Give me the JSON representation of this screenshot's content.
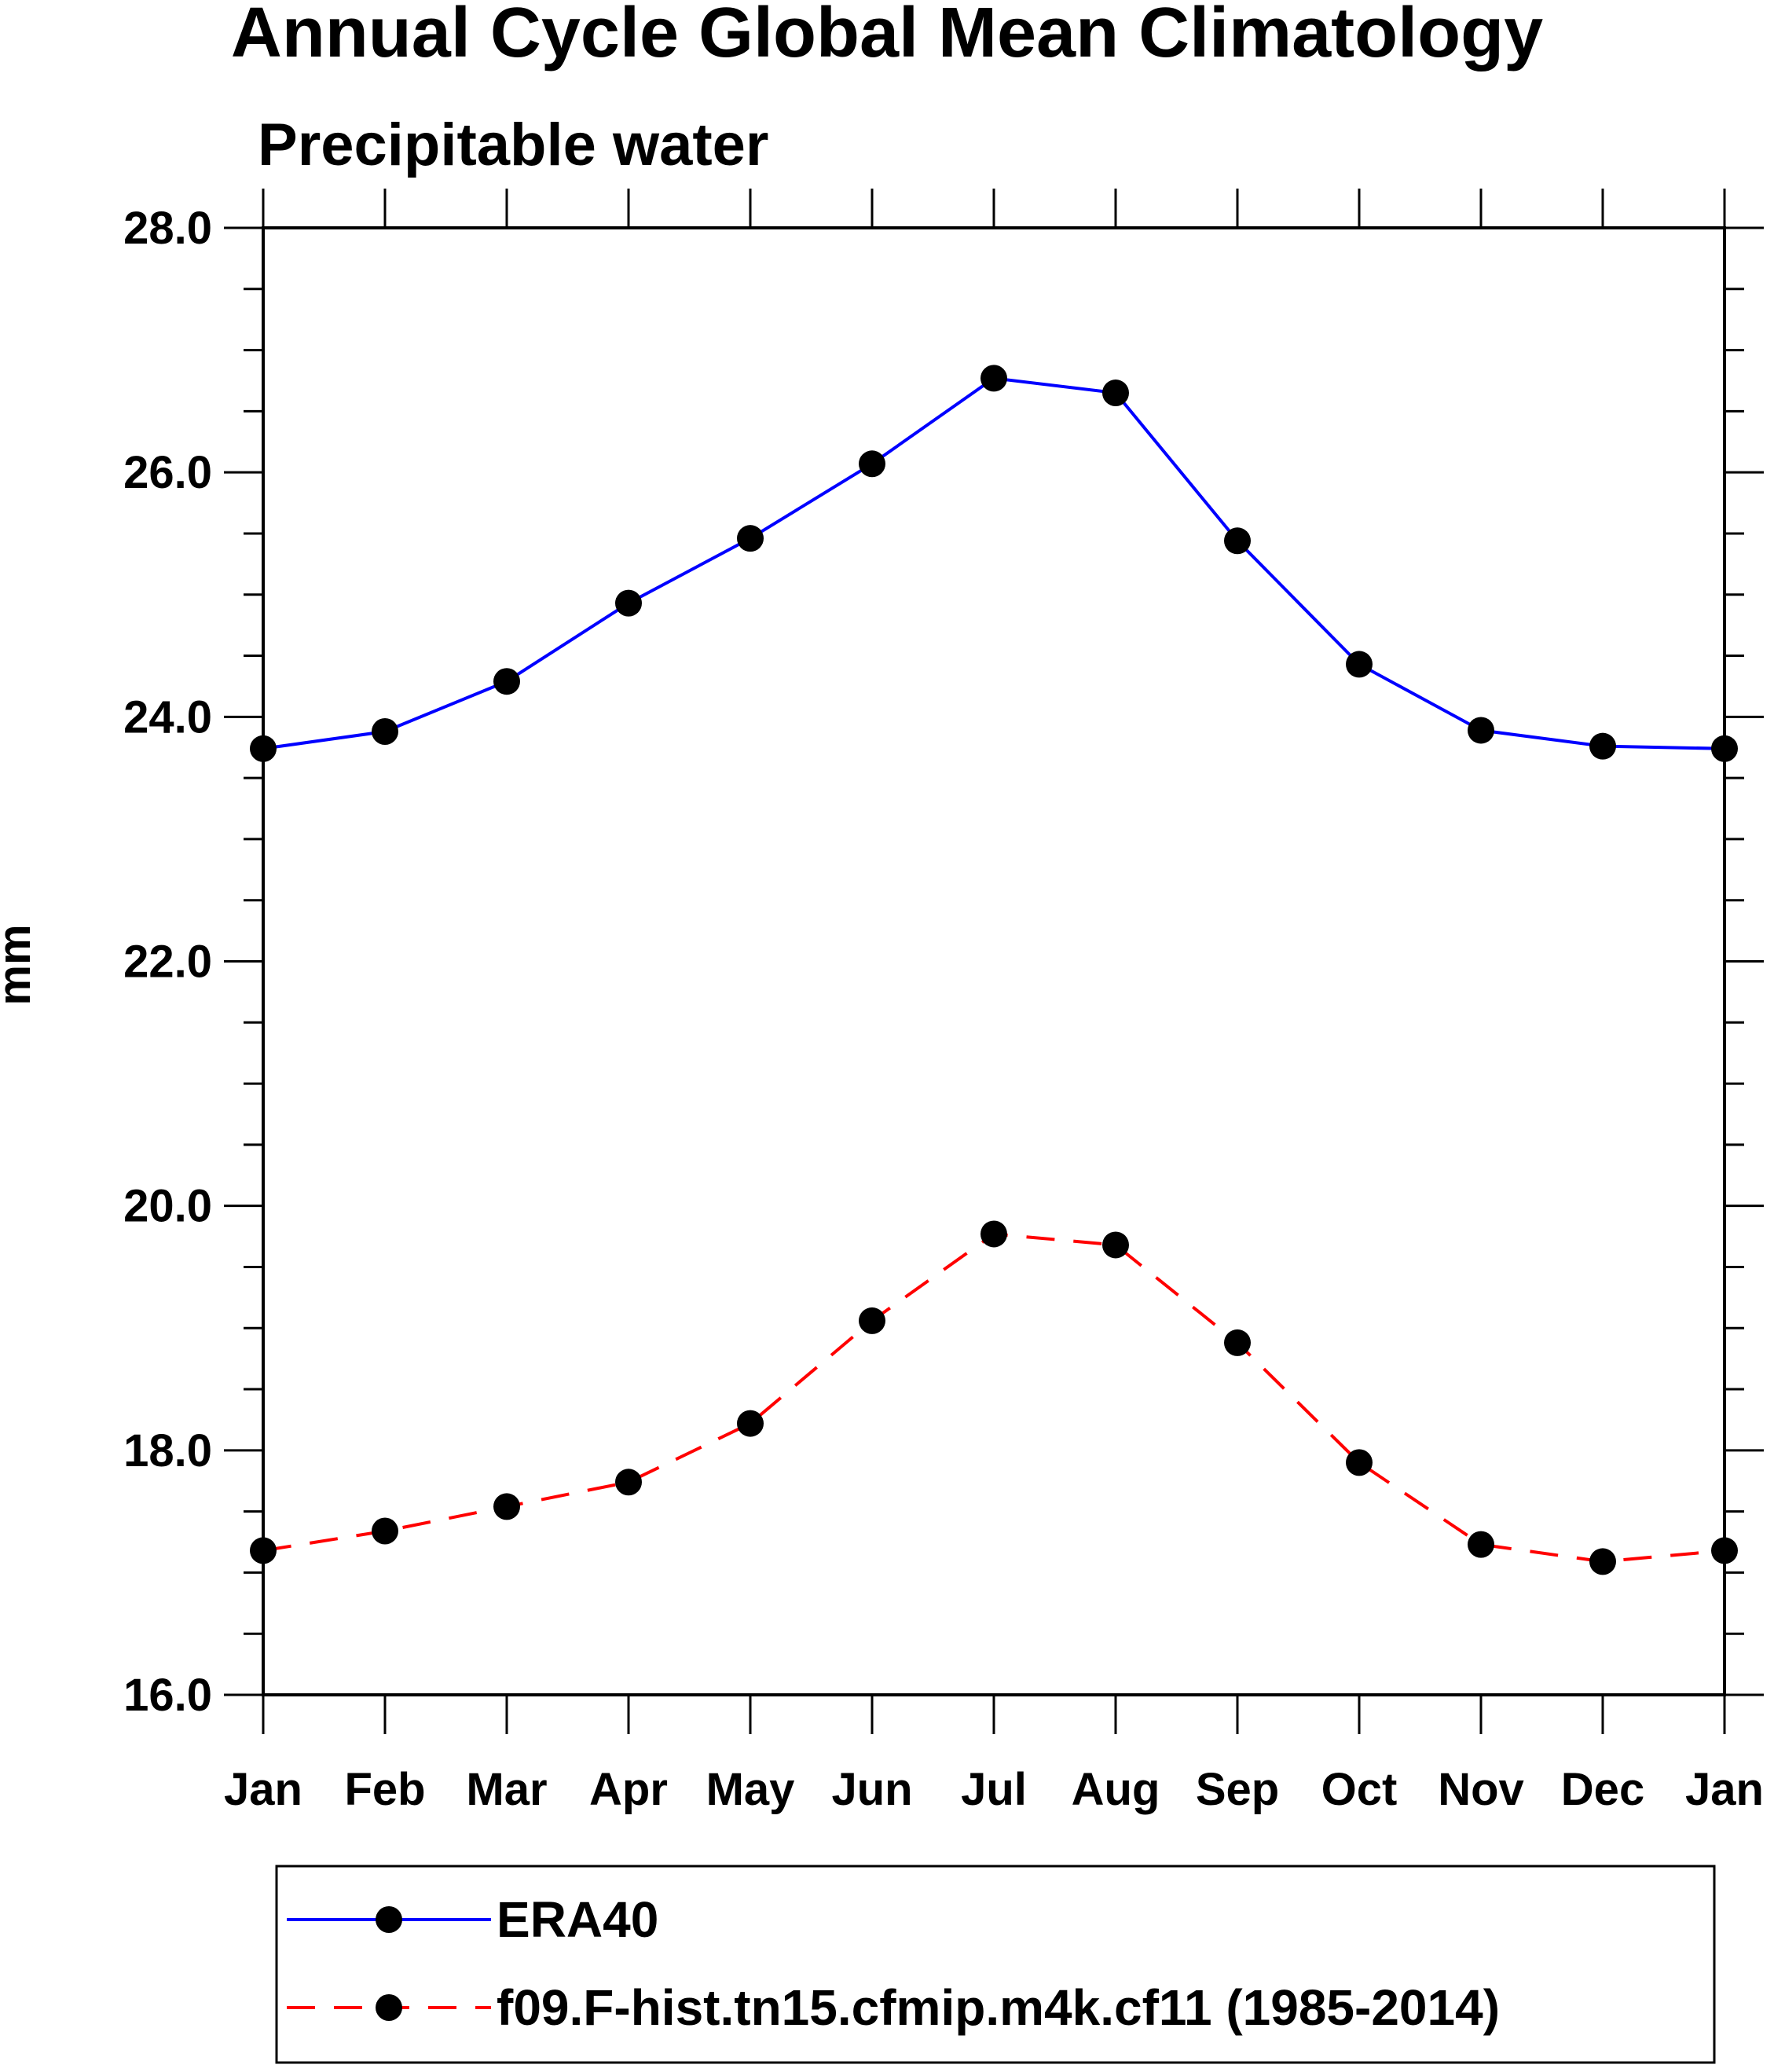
{
  "chart_data": {
    "type": "line",
    "title": "Annual Cycle Global Mean Climatology",
    "subtitle": "Precipitable water",
    "xlabel": "",
    "ylabel": "mm",
    "categories": [
      "Jan",
      "Feb",
      "Mar",
      "Apr",
      "May",
      "Jun",
      "Jul",
      "Aug",
      "Sep",
      "Oct",
      "Nov",
      "Dec",
      "Jan"
    ],
    "ylim": [
      16.0,
      28.0
    ],
    "y_major_ticks": [
      "16.0",
      "18.0",
      "20.0",
      "22.0",
      "24.0",
      "26.0",
      "28.0"
    ],
    "y_minor_step": 0.5,
    "grid": false,
    "legend_position": "bottom",
    "series": [
      {
        "name": "ERA40",
        "color": "#0000ff",
        "line_style": "solid",
        "marker": "filled-circle",
        "values": [
          23.74,
          23.88,
          24.29,
          24.93,
          25.46,
          26.07,
          26.77,
          26.65,
          25.44,
          24.43,
          23.89,
          23.76,
          23.74
        ]
      },
      {
        "name": "f09.F-hist.tn15.cfmip.m4k.cf11 (1985-2014)",
        "color": "#ff0000",
        "line_style": "dashed",
        "marker": "filled-circle",
        "values": [
          17.18,
          17.34,
          17.54,
          17.74,
          18.22,
          19.06,
          19.77,
          19.68,
          18.88,
          17.9,
          17.23,
          17.09,
          17.18
        ]
      }
    ]
  }
}
